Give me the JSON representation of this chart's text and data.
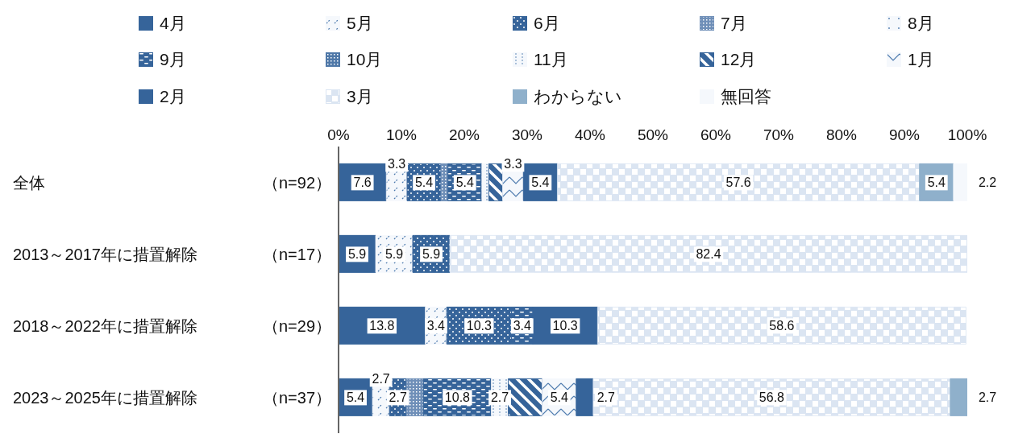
{
  "chart_data": {
    "type": "bar",
    "orientation": "horizontal",
    "stacked": true,
    "legend": "top",
    "categories": [
      "全体（n=92）",
      "2013～2017年に措置解除（n=17）",
      "2018～2022年に措置解除（n=29）",
      "2023～2025年に措置解除（n=37）"
    ],
    "xlim": [
      0,
      100
    ],
    "xticks": [
      {
        "value": 0,
        "label": "0%"
      },
      {
        "value": 10,
        "label": "10%"
      },
      {
        "value": 20,
        "label": "20%"
      },
      {
        "value": 30,
        "label": "30%"
      },
      {
        "value": 40,
        "label": "40%"
      },
      {
        "value": 50,
        "label": "50%"
      },
      {
        "value": 60,
        "label": "60%"
      },
      {
        "value": 70,
        "label": "70%"
      },
      {
        "value": 80,
        "label": "80%"
      },
      {
        "value": 90,
        "label": "90%"
      },
      {
        "value": 100,
        "label": "100%"
      }
    ],
    "series": [
      {
        "name": "4月",
        "color": "#36649a",
        "values": [
          7.6,
          5.9,
          13.8,
          5.4
        ],
        "value_labels": [
          "7.6",
          "5.9",
          "13.8",
          "5.4"
        ]
      },
      {
        "name": "5月",
        "color": "#f5f8fc",
        "values": [
          3.3,
          5.9,
          3.4,
          2.7
        ],
        "value_labels": [
          "3.3",
          "5.9",
          "3.4",
          "2.7"
        ]
      },
      {
        "name": "6月",
        "color": "#36649a",
        "values": [
          5.4,
          5.9,
          10.3,
          2.7
        ],
        "value_labels": [
          "5.4",
          "5.9",
          "10.3",
          "2.7"
        ]
      },
      {
        "name": "7月",
        "color": "#6f8fb8",
        "values": [
          1.1,
          0,
          0,
          2.7
        ],
        "value_labels": [
          null,
          null,
          null,
          null
        ]
      },
      {
        "name": "8月",
        "color": "#f5f8fc",
        "values": [
          0,
          0,
          0,
          0
        ],
        "value_labels": [
          null,
          null,
          null,
          null
        ]
      },
      {
        "name": "9月",
        "color": "#36649a",
        "values": [
          5.4,
          0,
          3.4,
          10.8
        ],
        "value_labels": [
          "5.4",
          null,
          "3.4",
          "10.8"
        ]
      },
      {
        "name": "10月",
        "color": "#4f78a8",
        "values": [
          0,
          0,
          0,
          0
        ],
        "value_labels": [
          null,
          null,
          null,
          null
        ]
      },
      {
        "name": "11月",
        "color": "#f5f8fc",
        "values": [
          1.1,
          0,
          0,
          2.7
        ],
        "value_labels": [
          null,
          null,
          null,
          "2.7"
        ]
      },
      {
        "name": "12月",
        "color": "#36649a",
        "values": [
          2.2,
          0,
          0,
          5.4
        ],
        "value_labels": [
          null,
          null,
          null,
          null
        ]
      },
      {
        "name": "1月",
        "color": "#f5f8fc",
        "values": [
          3.3,
          0,
          0,
          5.4
        ],
        "value_labels": [
          "3.3",
          null,
          null,
          "5.4"
        ]
      },
      {
        "name": "2月",
        "color": "#36649a",
        "values": [
          5.4,
          0,
          10.3,
          2.7
        ],
        "value_labels": [
          "5.4",
          null,
          "10.3",
          "2.7"
        ]
      },
      {
        "name": "3月",
        "color": "#dbe5f2",
        "values": [
          57.6,
          82.4,
          58.6,
          56.8
        ],
        "value_labels": [
          "57.6",
          "82.4",
          "58.6",
          "56.8"
        ]
      },
      {
        "name": "わからない",
        "color": "#8fb0cb",
        "values": [
          5.4,
          0,
          0,
          2.7
        ],
        "value_labels": [
          "5.4",
          null,
          null,
          "2.7"
        ]
      },
      {
        "name": "無回答",
        "color": "#f5f8fc",
        "values": [
          2.2,
          0,
          0,
          0
        ],
        "value_labels": [
          "2.2",
          null,
          null,
          null
        ]
      }
    ]
  }
}
